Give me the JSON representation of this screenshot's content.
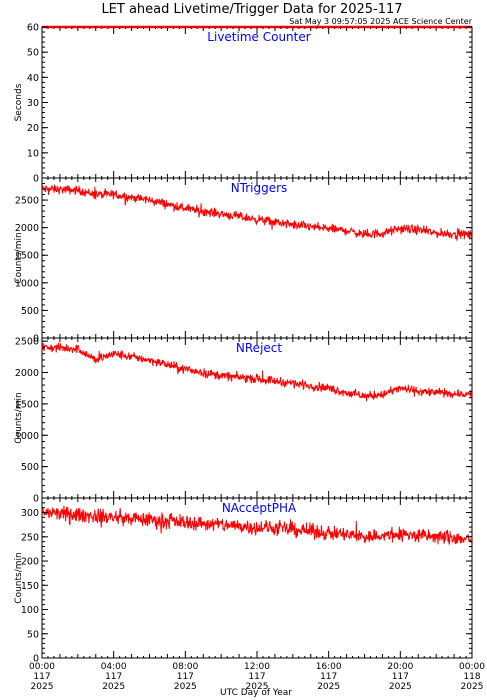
{
  "title": "LET ahead Livetime/Trigger Data for 2025-117",
  "subtitle": "Sat May  3 09:57:05 2025 ACE Science Center",
  "xlabel": "UTC Day of Year",
  "x_ticks": [
    {
      "time": "00:00",
      "doy": "117",
      "year": "2025"
    },
    {
      "time": "04:00",
      "doy": "117",
      "year": "2025"
    },
    {
      "time": "08:00",
      "doy": "117",
      "year": "2025"
    },
    {
      "time": "12:00",
      "doy": "117",
      "year": "2025"
    },
    {
      "time": "16:00",
      "doy": "117",
      "year": "2025"
    },
    {
      "time": "20:00",
      "doy": "117",
      "year": "2025"
    },
    {
      "time": "00:00",
      "doy": "118",
      "year": "2025"
    }
  ],
  "colors": {
    "trace": "#ff0000",
    "panel_title": "#0000ff",
    "axes": "#000000"
  },
  "chart_data": [
    {
      "type": "line",
      "title": "Livetime Counter",
      "ylabel": "Seconds",
      "ylim": [
        0,
        60
      ],
      "yticks": [
        0,
        10,
        20,
        30,
        40,
        50,
        60
      ],
      "xlim_hours": [
        0,
        24
      ],
      "series": [
        {
          "name": "",
          "x_hours": [
            0,
            24
          ],
          "values": [
            60,
            60
          ],
          "noise": 0
        }
      ]
    },
    {
      "type": "line",
      "title": "NTriggers",
      "ylabel": "Counts/min",
      "ylim": [
        0,
        2900
      ],
      "yticks": [
        0,
        500,
        1000,
        1500,
        2000,
        2500
      ],
      "xlim_hours": [
        0,
        24
      ],
      "series": [
        {
          "name": "",
          "x_hours": [
            0,
            2,
            3,
            4,
            6,
            8,
            10,
            12,
            14,
            16,
            17,
            18,
            19,
            20,
            21,
            22,
            24
          ],
          "values": [
            2700,
            2680,
            2600,
            2600,
            2500,
            2350,
            2250,
            2150,
            2050,
            1980,
            1950,
            1870,
            1900,
            1980,
            1960,
            1900,
            1870
          ],
          "noise": 80
        }
      ]
    },
    {
      "type": "line",
      "title": "NReject",
      "ylabel": "Counts/min",
      "ylim": [
        0,
        2550
      ],
      "yticks": [
        0,
        500,
        1000,
        1500,
        2000,
        2500
      ],
      "xlim_hours": [
        0,
        24
      ],
      "series": [
        {
          "name": "",
          "x_hours": [
            0,
            2,
            3,
            4,
            6,
            8,
            10,
            12,
            14,
            16,
            17,
            18,
            19,
            20,
            21,
            22,
            24
          ],
          "values": [
            2400,
            2380,
            2200,
            2300,
            2200,
            2050,
            1950,
            1900,
            1830,
            1750,
            1680,
            1620,
            1650,
            1750,
            1700,
            1680,
            1650
          ],
          "noise": 70
        }
      ]
    },
    {
      "type": "line",
      "title": "NAcceptPHA",
      "ylabel": "Counts/min",
      "ylim": [
        0,
        330
      ],
      "yticks": [
        0,
        50,
        100,
        150,
        200,
        250,
        300
      ],
      "xlim_hours": [
        0,
        24
      ],
      "series": [
        {
          "name": "",
          "x_hours": [
            0,
            2,
            4,
            6,
            8,
            10,
            12,
            14,
            16,
            18,
            20,
            22,
            24
          ],
          "values": [
            300,
            295,
            290,
            285,
            280,
            275,
            270,
            265,
            258,
            250,
            255,
            250,
            245
          ],
          "noise": 15
        }
      ]
    }
  ]
}
